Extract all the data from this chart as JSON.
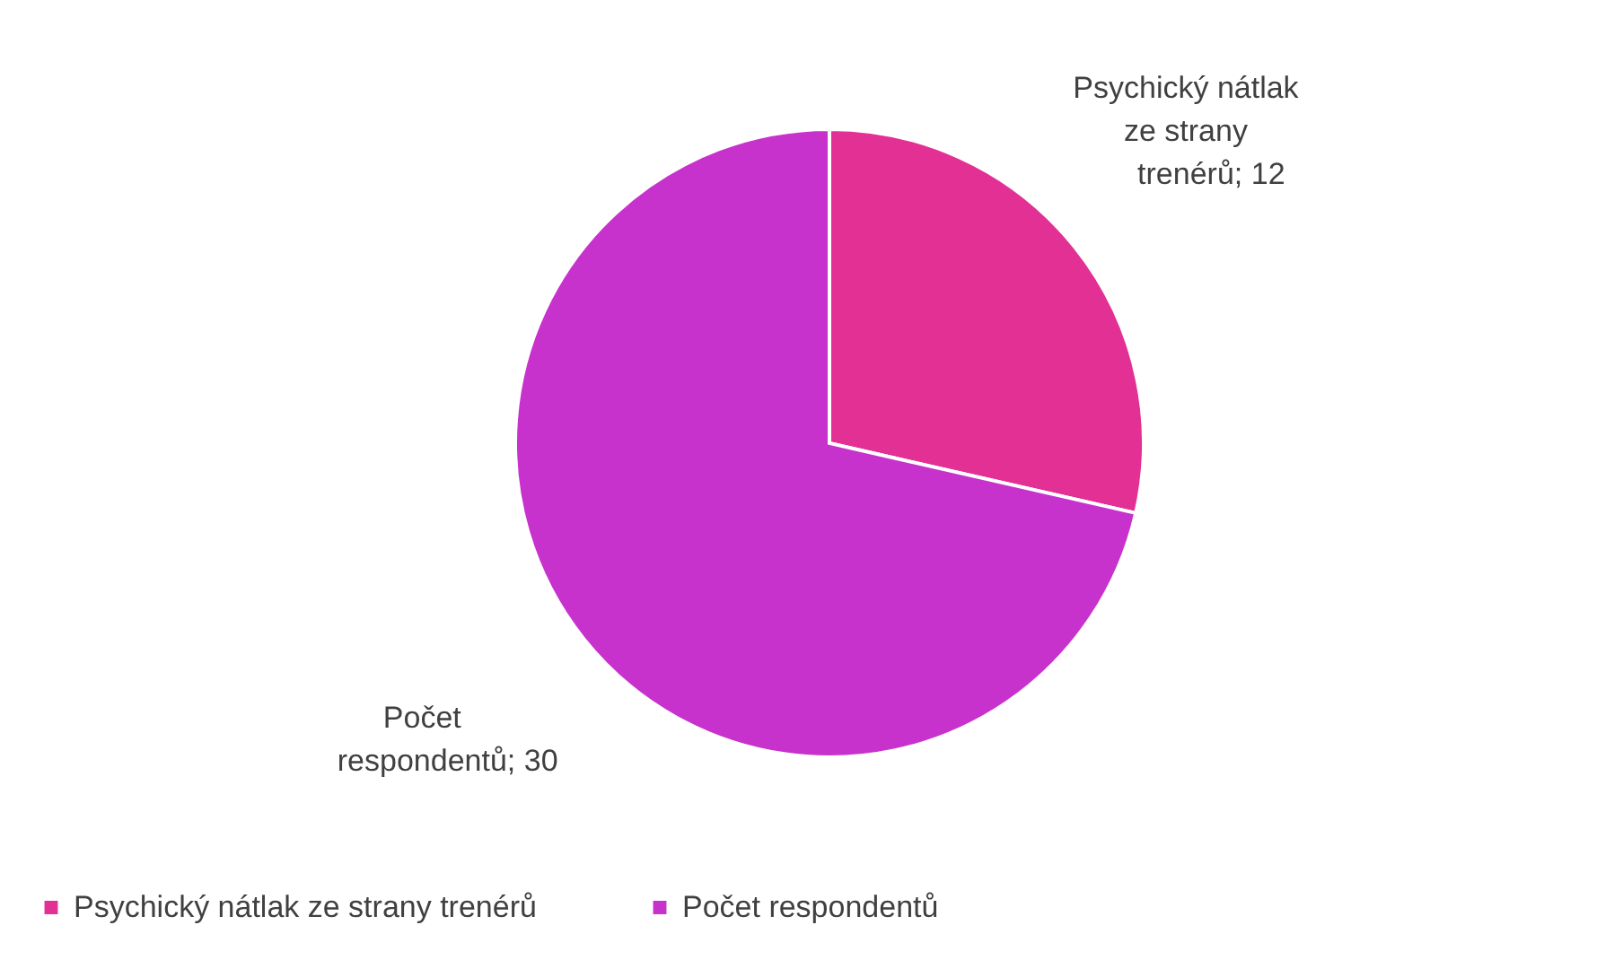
{
  "chart_data": {
    "type": "pie",
    "categories": [
      "Psychický nátlak ze strany trenérů",
      "Počet respondentů"
    ],
    "values": [
      12,
      30
    ],
    "colors": [
      "#e33094",
      "#c832cc"
    ],
    "value_labels": [
      "; 12",
      "; 30"
    ],
    "legend": "bottom"
  }
}
